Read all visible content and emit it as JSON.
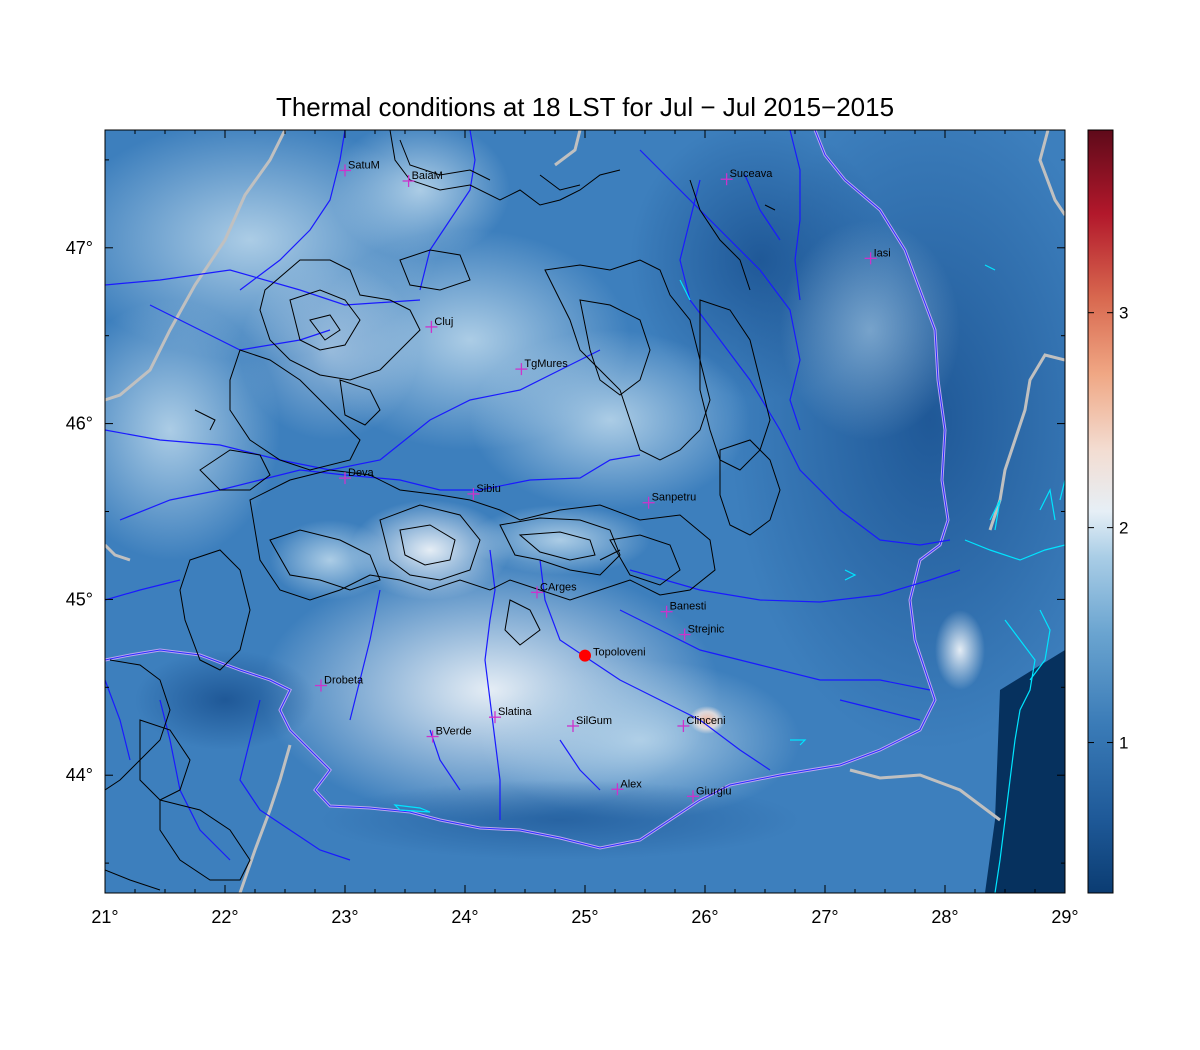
{
  "title": "Thermal conditions at 18 LST for Jul − Jul  2015−2015",
  "map": {
    "lon_range": [
      21,
      29
    ],
    "lat_range": [
      43.33,
      47.67
    ],
    "x_ticks": [
      "21°",
      "22°",
      "23°",
      "24°",
      "25°",
      "26°",
      "27°",
      "28°",
      "29°"
    ],
    "y_ticks": [
      "44°",
      "45°",
      "46°",
      "47°"
    ],
    "y_tick_values": [
      44,
      45,
      46,
      47
    ],
    "x_tick_values": [
      21,
      22,
      23,
      24,
      25,
      26,
      27,
      28,
      29
    ]
  },
  "colorbar": {
    "range": [
      0.3,
      3.85
    ],
    "tick_labels": [
      "1",
      "2",
      "3"
    ],
    "tick_values": [
      1,
      2,
      3
    ],
    "colors": [
      "#0b3c72",
      "#2166ac",
      "#4393c3",
      "#92c5de",
      "#d1e5f0",
      "#f7f7f7",
      "#fddbc7",
      "#f4a582",
      "#d6604d",
      "#b2182b",
      "#67001f"
    ]
  },
  "stations": [
    {
      "name": "SatuM",
      "lon": 23.0,
      "lat": 47.44
    },
    {
      "name": "BaiaM",
      "lon": 23.53,
      "lat": 47.38
    },
    {
      "name": "Suceava",
      "lon": 26.18,
      "lat": 47.39
    },
    {
      "name": "Iasi",
      "lon": 27.38,
      "lat": 46.94
    },
    {
      "name": "Cluj",
      "lon": 23.72,
      "lat": 46.55
    },
    {
      "name": "TgMures",
      "lon": 24.47,
      "lat": 46.31
    },
    {
      "name": "Deva",
      "lon": 23.0,
      "lat": 45.69
    },
    {
      "name": "Sibiu",
      "lon": 24.07,
      "lat": 45.6
    },
    {
      "name": "Sanpetru",
      "lon": 25.53,
      "lat": 45.55
    },
    {
      "name": "CArges",
      "lon": 24.6,
      "lat": 45.04
    },
    {
      "name": "Banesti",
      "lon": 25.68,
      "lat": 44.93
    },
    {
      "name": "Strejnic",
      "lon": 25.83,
      "lat": 44.8
    },
    {
      "name": "Drobeta",
      "lon": 22.8,
      "lat": 44.51
    },
    {
      "name": "Slatina",
      "lon": 24.25,
      "lat": 44.33
    },
    {
      "name": "BVerde",
      "lon": 23.73,
      "lat": 44.22
    },
    {
      "name": "SilGum",
      "lon": 24.9,
      "lat": 44.28
    },
    {
      "name": "Clinceni",
      "lon": 25.82,
      "lat": 44.28
    },
    {
      "name": "Alex",
      "lon": 25.27,
      "lat": 43.92
    },
    {
      "name": "Giurgiu",
      "lon": 25.9,
      "lat": 43.88
    }
  ],
  "highlight": {
    "name": "Topoloveni",
    "lon": 25.0,
    "lat": 44.68,
    "color": "#ff0000"
  },
  "colors": {
    "marker": "#cc33cc",
    "rivers": "#1a1aff",
    "borders": "#c0c0c0",
    "admin_border": "#b9a6f0",
    "coast": "#00e5ff",
    "contours": "#000000",
    "sea": "#06315e"
  }
}
